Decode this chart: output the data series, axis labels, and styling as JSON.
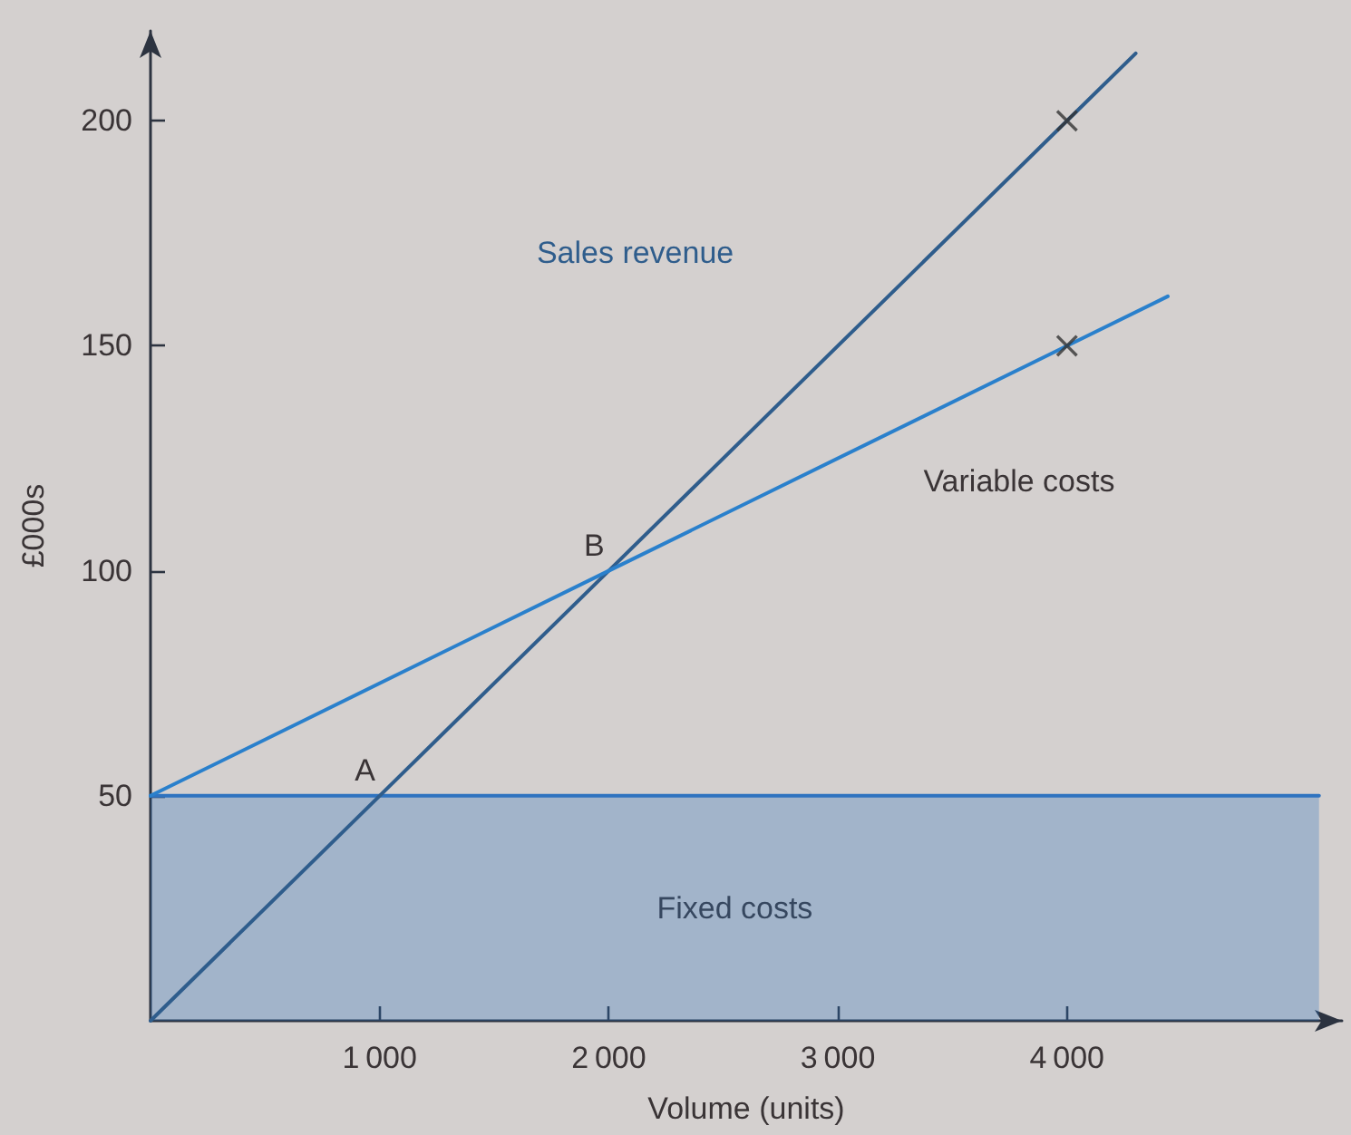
{
  "chart_data": {
    "type": "line",
    "xlabel": "Volume (units)",
    "ylabel": "£000s",
    "xlim": [
      0,
      5200
    ],
    "xticks": [
      {
        "value": 1000,
        "label": "1 000"
      },
      {
        "value": 2000,
        "label": "2 000"
      },
      {
        "value": 3000,
        "label": "3 000"
      },
      {
        "value": 4000,
        "label": "4 000"
      }
    ],
    "ylim": [
      0,
      220
    ],
    "yticks": [
      50,
      100,
      150,
      200
    ],
    "grid": false,
    "legend": false,
    "marker": "none",
    "line_style": "solid",
    "series": [
      {
        "name": "Fixed costs",
        "type": "area",
        "color": "#2f73c0",
        "x": [
          0,
          5100
        ],
        "values": [
          50,
          50
        ]
      },
      {
        "name": "Sales revenue",
        "color": "#2f5d8c",
        "x": [
          0,
          1000,
          2000,
          4000,
          4300
        ],
        "values": [
          0,
          50,
          100,
          200,
          215
        ]
      },
      {
        "name": "Variable costs",
        "color": "#2a80cc",
        "x": [
          0,
          2000,
          4000,
          4440
        ],
        "values": [
          50,
          100,
          150,
          161
        ]
      },
      {
        "type": "scatter",
        "marker": "cross",
        "color": "#333333",
        "x": [
          4000,
          4000
        ],
        "values": [
          200,
          150
        ]
      }
    ],
    "annotations": [
      {
        "text": "A",
        "x": 1000,
        "y": 50
      },
      {
        "text": "B",
        "x": 2000,
        "y": 100
      }
    ]
  }
}
